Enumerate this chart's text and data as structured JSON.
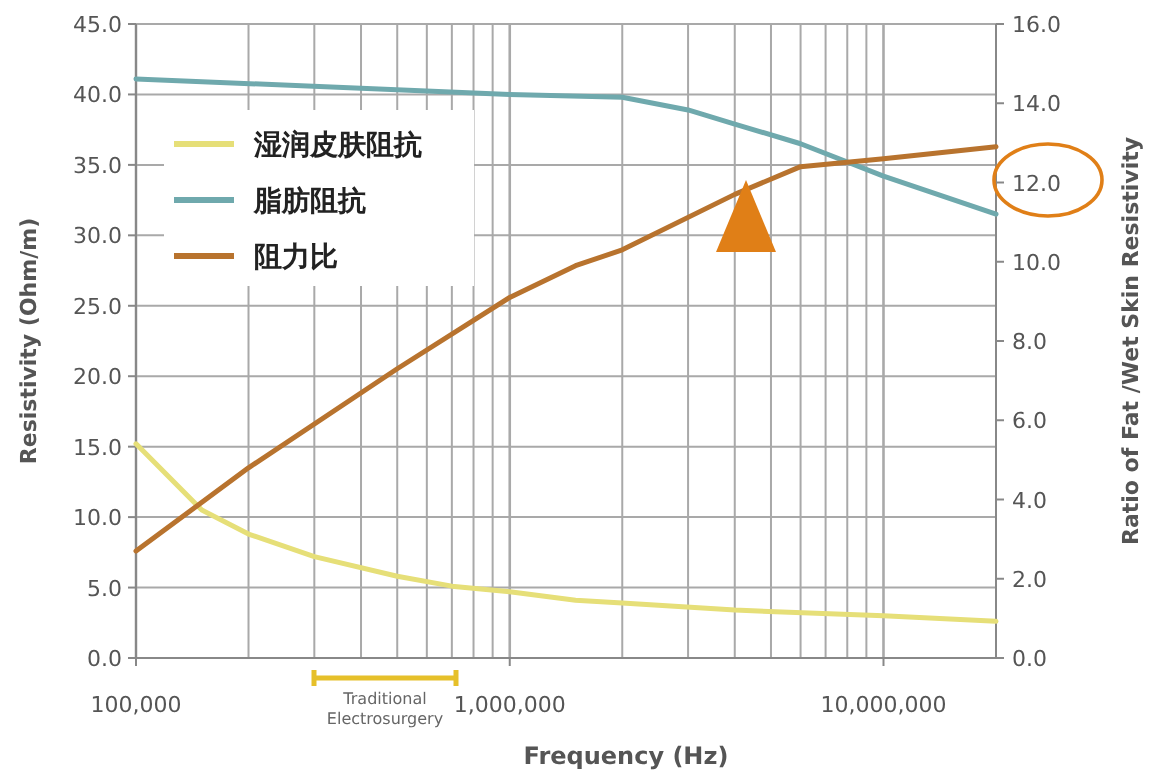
{
  "chart_data": {
    "type": "line",
    "xlabel": "Frequency (Hz)",
    "ylabel": "Resistivity (Ohm/m)",
    "y2label": "Ratio of Fat /Wet Skin Resistivity",
    "log": "x",
    "xlim": [
      100000,
      20000000
    ],
    "xticks": [
      {
        "value": 100000,
        "label": "100,000"
      },
      {
        "value": 1000000,
        "label": "1,000,000"
      },
      {
        "value": 10000000,
        "label": "10,000,000"
      }
    ],
    "ylim": [
      0,
      45
    ],
    "yticks": [
      {
        "value": 0,
        "label": "0.0"
      },
      {
        "value": 5,
        "label": "5.0"
      },
      {
        "value": 10,
        "label": "10.0"
      },
      {
        "value": 15,
        "label": "15.0"
      },
      {
        "value": 20,
        "label": "20.0"
      },
      {
        "value": 25,
        "label": "25.0"
      },
      {
        "value": 30,
        "label": "30.0"
      },
      {
        "value": 35,
        "label": "35.0"
      },
      {
        "value": 40,
        "label": "40.0"
      },
      {
        "value": 45,
        "label": "45.0"
      }
    ],
    "y2lim": [
      0,
      16
    ],
    "y2ticks": [
      {
        "value": 0,
        "label": "0.0"
      },
      {
        "value": 2,
        "label": "2.0"
      },
      {
        "value": 4,
        "label": "4.0"
      },
      {
        "value": 6,
        "label": "6.0"
      },
      {
        "value": 8,
        "label": "8.0"
      },
      {
        "value": 10,
        "label": "10.0"
      },
      {
        "value": 12,
        "label": "12.0"
      },
      {
        "value": 14,
        "label": "14.0"
      },
      {
        "value": 16,
        "label": "16.0"
      }
    ],
    "grid": true,
    "legend": "top left",
    "line_style": "solid",
    "series": [
      {
        "name": "湿润皮肤阻抗",
        "color": "#e6df78",
        "x": [
          100000,
          150000,
          200000,
          300000,
          500000,
          700000,
          1000000,
          1500000,
          2000000,
          4000000,
          10000000,
          20000000
        ],
        "values": [
          15.2,
          10.5,
          8.8,
          7.2,
          5.8,
          5.1,
          4.7,
          4.1,
          3.9,
          3.4,
          3.0,
          2.6
        ]
      },
      {
        "name": "脂肪阻抗",
        "color": "#6fa9ad",
        "x": [
          100000,
          1000000,
          2000000,
          3000000,
          4000000,
          6000000,
          10000000,
          20000000
        ],
        "values": [
          41.1,
          40.0,
          39.8,
          38.9,
          37.9,
          36.5,
          34.2,
          31.5
        ]
      },
      {
        "name": "阻力比",
        "color": "#b8732e",
        "axis": "y2",
        "x": [
          100000,
          200000,
          500000,
          1000000,
          1500000,
          2000000,
          4000000,
          6000000,
          10000000,
          20000000
        ],
        "values": [
          2.7,
          4.8,
          7.3,
          9.1,
          9.9,
          10.3,
          11.7,
          12.4,
          12.6,
          12.9
        ]
      }
    ],
    "annotations": [
      "Traditional Electrosurgery"
    ]
  }
}
